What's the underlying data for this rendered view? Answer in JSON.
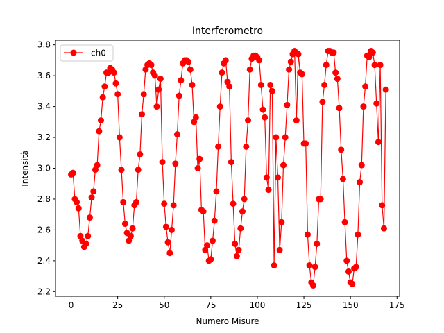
{
  "chart_data": {
    "type": "line",
    "title": "Interferometro",
    "xlabel": "Numero Misure",
    "ylabel": "Intensità",
    "xlim": [
      -8.4,
      176.4
    ],
    "ylim": [
      2.17,
      3.83
    ],
    "xticks": [
      0,
      25,
      50,
      75,
      100,
      125,
      150,
      175
    ],
    "yticks": [
      2.2,
      2.4,
      2.6,
      2.8,
      3.0,
      3.2,
      3.4,
      3.6,
      3.8
    ],
    "grid": false,
    "legend_position": "upper left",
    "series": [
      {
        "name": "ch0",
        "color": "#ff0000",
        "marker": "circle",
        "x": [
          0,
          1,
          2,
          3,
          4,
          5,
          6,
          7,
          8,
          9,
          10,
          11,
          12,
          13,
          14,
          15,
          16,
          17,
          18,
          19,
          20,
          21,
          22,
          23,
          24,
          25,
          26,
          27,
          28,
          29,
          30,
          31,
          32,
          33,
          34,
          35,
          36,
          37,
          38,
          39,
          40,
          41,
          42,
          43,
          44,
          45,
          46,
          47,
          48,
          49,
          50,
          51,
          52,
          53,
          54,
          55,
          56,
          57,
          58,
          59,
          60,
          61,
          62,
          63,
          64,
          65,
          66,
          67,
          68,
          69,
          70,
          71,
          72,
          73,
          74,
          75,
          76,
          77,
          78,
          79,
          80,
          81,
          82,
          83,
          84,
          85,
          86,
          87,
          88,
          89,
          90,
          91,
          92,
          93,
          94,
          95,
          96,
          97,
          98,
          99,
          100,
          101,
          102,
          103,
          104,
          105,
          106,
          107,
          108,
          109,
          110,
          111,
          112,
          113,
          114,
          115,
          116,
          117,
          118,
          119,
          120,
          121,
          122,
          123,
          124,
          125,
          126,
          127,
          128,
          129,
          130,
          131,
          132,
          133,
          134,
          135,
          136,
          137,
          138,
          139,
          140,
          141,
          142,
          143,
          144,
          145,
          146,
          147,
          148,
          149,
          150,
          151,
          152,
          153,
          154,
          155,
          156,
          157,
          158,
          159,
          160,
          161,
          162,
          163,
          164,
          165,
          166,
          167,
          168,
          169
        ],
        "y": [
          2.96,
          2.97,
          2.8,
          2.78,
          2.74,
          2.56,
          2.53,
          2.49,
          2.51,
          2.56,
          2.68,
          2.81,
          2.85,
          2.99,
          3.02,
          3.24,
          3.31,
          3.46,
          3.53,
          3.62,
          3.62,
          3.65,
          3.64,
          3.62,
          3.55,
          3.48,
          3.2,
          2.99,
          2.78,
          2.64,
          2.58,
          2.53,
          2.56,
          2.61,
          2.76,
          2.78,
          2.99,
          3.09,
          3.35,
          3.48,
          3.64,
          3.67,
          3.68,
          3.67,
          3.62,
          3.6,
          3.4,
          3.51,
          3.58,
          3.04,
          2.77,
          2.62,
          2.52,
          2.45,
          2.6,
          2.76,
          3.03,
          3.22,
          3.47,
          3.57,
          3.68,
          3.7,
          3.7,
          3.69,
          3.64,
          3.54,
          3.3,
          3.33,
          3.0,
          3.06,
          2.73,
          2.72,
          2.47,
          2.5,
          2.4,
          2.41,
          2.53,
          2.66,
          2.85,
          3.14,
          3.4,
          3.62,
          3.68,
          3.7,
          3.56,
          3.53,
          3.04,
          2.77,
          2.51,
          2.43,
          2.47,
          2.61,
          2.72,
          2.8,
          3.14,
          3.31,
          3.64,
          3.71,
          3.73,
          3.73,
          3.72,
          3.7,
          3.54,
          3.38,
          3.33,
          2.94,
          2.86,
          3.54,
          3.5,
          2.37,
          3.2,
          2.94,
          2.47,
          2.65,
          3.02,
          3.2,
          3.41,
          3.64,
          3.69,
          3.74,
          3.76,
          3.31,
          3.74,
          3.62,
          3.61,
          3.16,
          3.16,
          2.57,
          2.37,
          2.26,
          2.24,
          2.36,
          2.51,
          2.8,
          2.8,
          3.43,
          3.54,
          3.67,
          3.76,
          3.76,
          3.75,
          3.75,
          3.62,
          3.58,
          3.39,
          3.12,
          2.93,
          2.65,
          2.4,
          2.33,
          2.26,
          2.25,
          2.35,
          2.36,
          2.57,
          2.91,
          3.02,
          3.4,
          3.53,
          3.73,
          3.72,
          3.76,
          3.75,
          3.67,
          3.42,
          3.17,
          3.67,
          2.76,
          2.61,
          3.51
        ]
      }
    ]
  }
}
